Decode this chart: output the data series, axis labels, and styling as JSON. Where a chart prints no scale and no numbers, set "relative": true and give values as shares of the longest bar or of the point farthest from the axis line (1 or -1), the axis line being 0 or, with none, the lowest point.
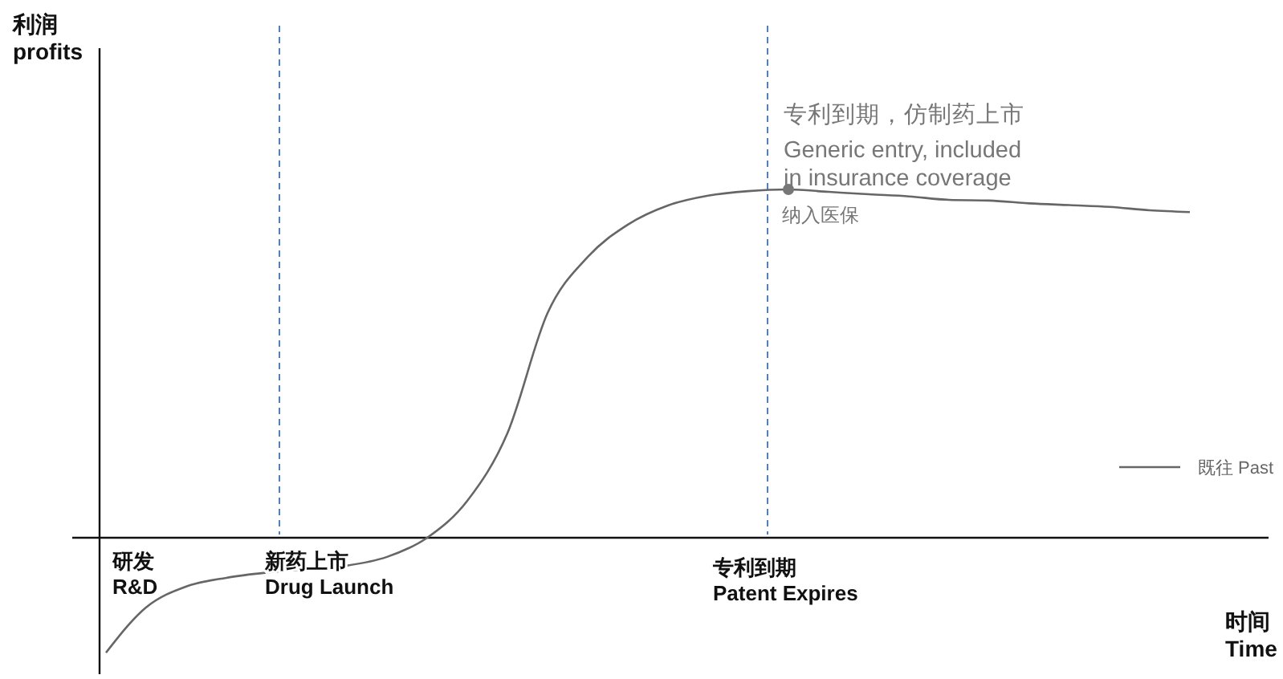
{
  "chart_data": {
    "type": "line",
    "relative": true,
    "xlabel": "时间\nTime",
    "categories": [
      null,
      null,
      null,
      null,
      null,
      null,
      null,
      null,
      null,
      null,
      null,
      null,
      null,
      null,
      null,
      null,
      null,
      null,
      null,
      null,
      null,
      null,
      null,
      null,
      null,
      null,
      null,
      null
    ],
    "series": [
      {
        "name": "既往 Past",
        "color": "#666666",
        "values": [
          -0.33,
          -0.2,
          -0.14,
          -0.115,
          -0.1,
          -0.09,
          -0.08,
          -0.055,
          0,
          0.106,
          0.3,
          0.645,
          0.806,
          0.899,
          0.954,
          0.982,
          0.995,
          1,
          0.993,
          0.986,
          0.98,
          0.97,
          0.968,
          0.96,
          0.955,
          0.95,
          0.94,
          0.935
        ]
      }
    ],
    "annotations": [
      "利润\nprofits",
      "研发\nR&D",
      "新药上市\nDrug Launch",
      "专利到期\nPatent Expires",
      "专利到期，仿制药上市",
      "Generic entry, included\nin insurance coverage",
      {
        "text": "纳入医保",
        "y": 1
      }
    ],
    "legend": "right",
    "marker": "none",
    "line_style": "solid"
  }
}
